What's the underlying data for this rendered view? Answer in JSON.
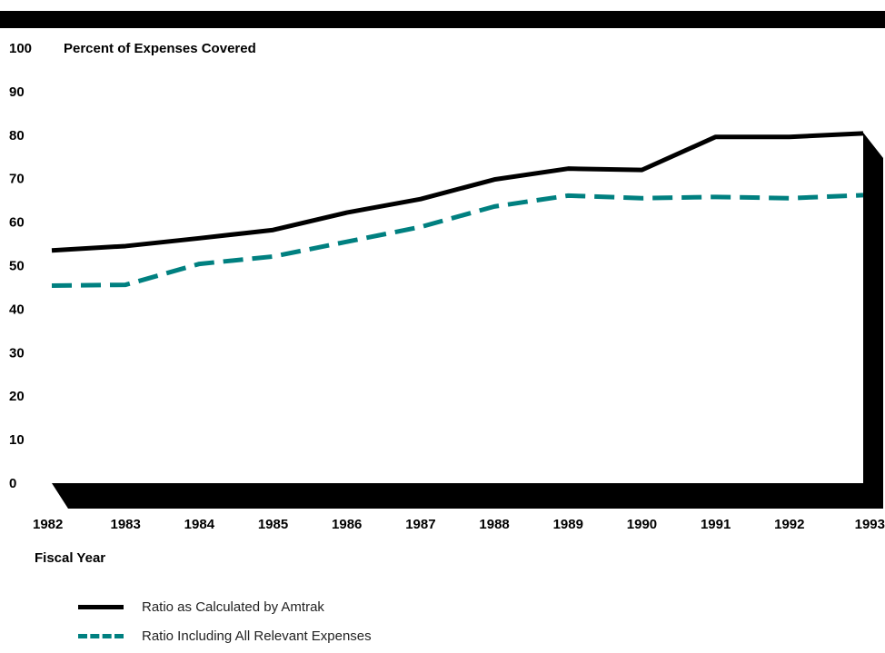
{
  "chart_data": {
    "type": "line",
    "ylabel": "Percent of Expenses Covered",
    "xlabel": "Fiscal Year",
    "ylim": [
      0,
      100
    ],
    "yticks": [
      0,
      10,
      20,
      30,
      40,
      50,
      60,
      70,
      80,
      90,
      100
    ],
    "x": [
      "1982",
      "1983",
      "1984",
      "1985",
      "1986",
      "1987",
      "1988",
      "1989",
      "1990",
      "1991",
      "1992",
      "1993"
    ],
    "grid": false,
    "legend_position": "bottom-left",
    "series": [
      {
        "name": "Ratio as Calculated by Amtrak",
        "style": "solid",
        "color": "#000000",
        "values": [
          53.5,
          54.5,
          56.3,
          58.2,
          62.2,
          65.3,
          69.8,
          72.3,
          72.0,
          79.6,
          79.6,
          80.4
        ]
      },
      {
        "name": "Ratio Including All Relevant Expenses",
        "style": "dashed",
        "color": "#008080",
        "values": [
          45.4,
          45.6,
          50.4,
          52.1,
          55.5,
          58.9,
          63.6,
          66.1,
          65.5,
          65.8,
          65.5,
          66.2
        ]
      }
    ]
  }
}
